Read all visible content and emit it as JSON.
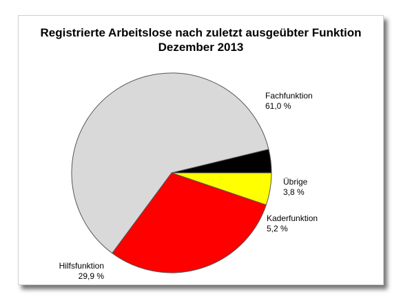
{
  "chart_data": {
    "type": "pie",
    "title": "Registrierte Arbeitslose nach zuletzt ausgeübter Funktion",
    "subtitle": "Dezember 2013",
    "slices": [
      {
        "name": "Fachfunktion",
        "value": 61.0,
        "value_label": "61,0 %",
        "color": "#d9d9d9"
      },
      {
        "name": "Hilfsfunktion",
        "value": 29.9,
        "value_label": "29,9 %",
        "color": "#ff0000"
      },
      {
        "name": "Kaderfunktion",
        "value": 5.2,
        "value_label": "5,2 %",
        "color": "#ffff00"
      },
      {
        "name": "Übrige",
        "value": 3.8,
        "value_label": "3,8 %",
        "color": "#000000"
      }
    ]
  }
}
